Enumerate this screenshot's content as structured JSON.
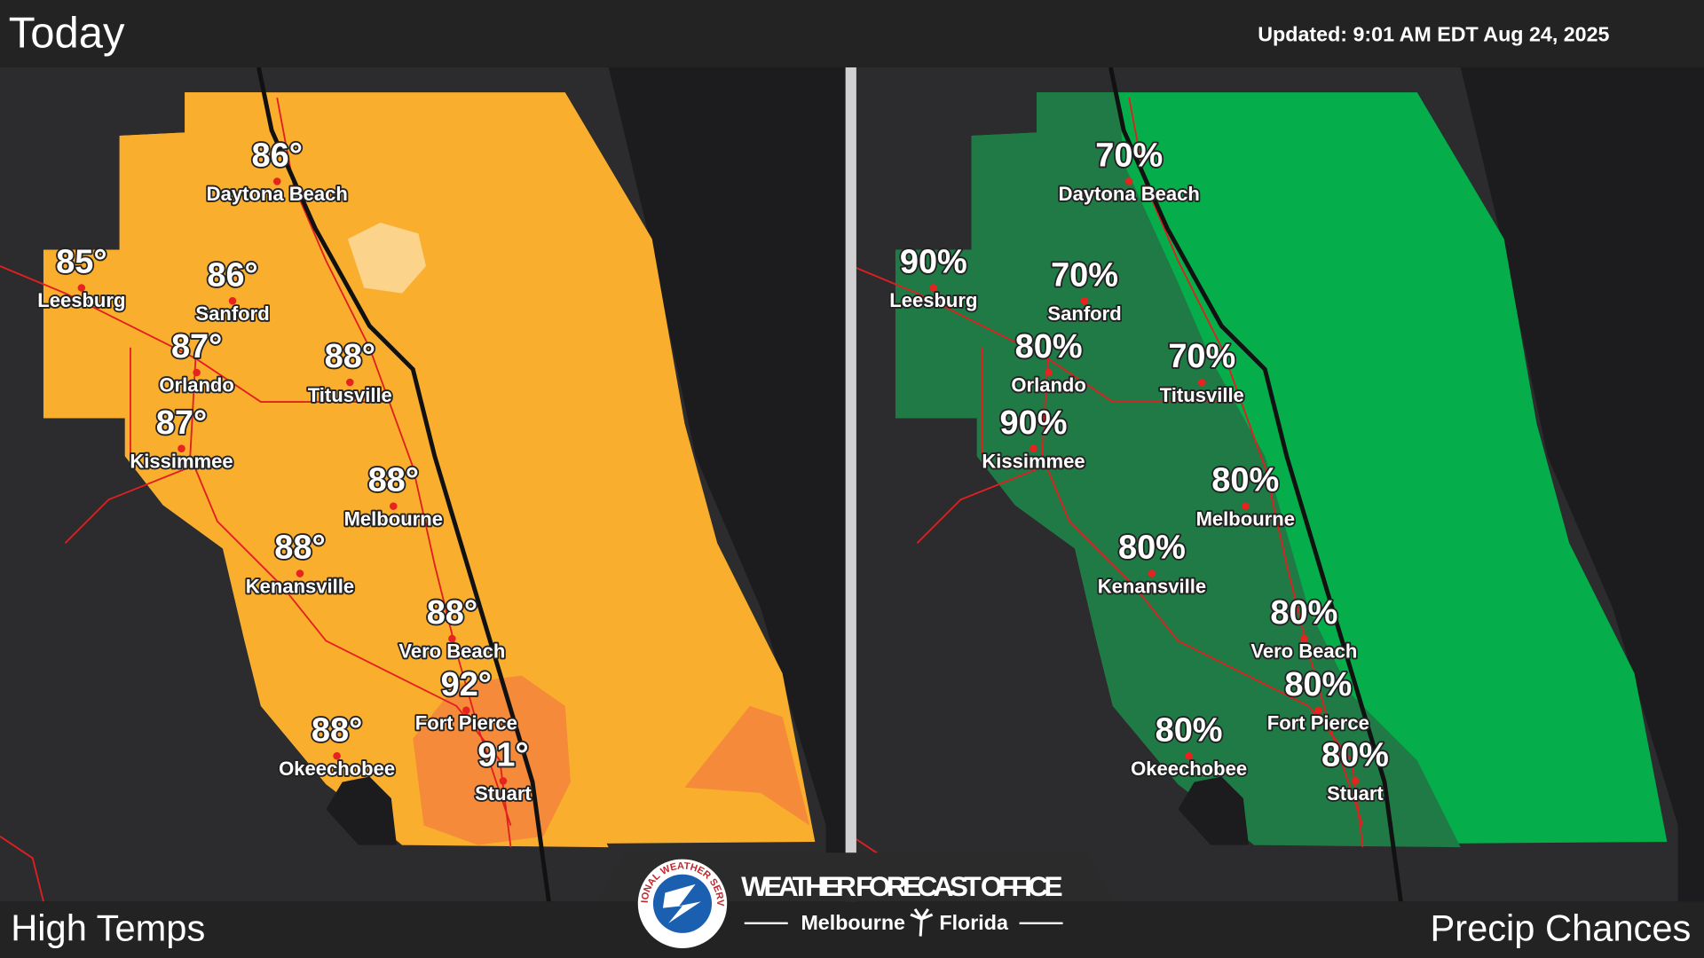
{
  "header": {
    "title": "Today",
    "updated": "Updated:  9:01 AM EDT Aug 24, 2025"
  },
  "cities": [
    "Daytona Beach",
    "Leesburg",
    "Sanford",
    "Orlando",
    "Titusville",
    "Kissimmee",
    "Melbourne",
    "Kenansville",
    "Vero Beach",
    "Fort Pierce",
    "Okeechobee",
    "Stuart"
  ],
  "panels": [
    {
      "label": "High Temps",
      "values": [
        "86°",
        "85°",
        "86°",
        "87°",
        "88°",
        "87°",
        "88°",
        "88°",
        "88°",
        "92°",
        "88°",
        "91°"
      ]
    },
    {
      "label": "Precip Chances",
      "values": [
        "70%",
        "90%",
        "70%",
        "80%",
        "70%",
        "90%",
        "80%",
        "80%",
        "80%",
        "80%",
        "80%",
        "80%"
      ]
    }
  ],
  "logo": {
    "title": "WEATHER FORECAST OFFICE",
    "office": "Melbourne",
    "state": "Florida",
    "seal": "NATIONAL WEATHER SERVICE"
  }
}
